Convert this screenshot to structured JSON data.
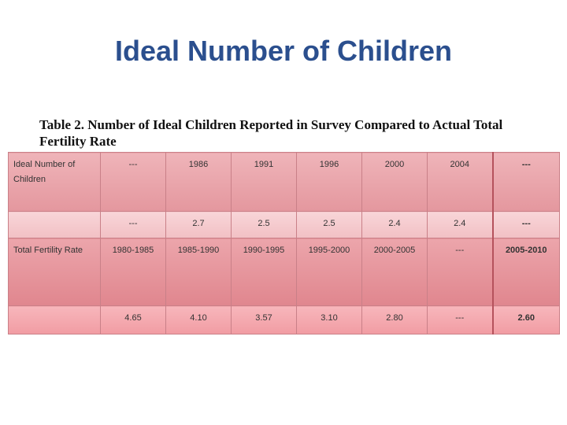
{
  "title": "Ideal Number of Children",
  "caption": "Table 2. Number of Ideal Children Reported in Survey Compared to Actual Total Fertility Rate",
  "table": {
    "rows": [
      [
        "Ideal Number of Children",
        "---",
        "1986",
        "1991",
        "1996",
        "2000",
        "2004",
        "---"
      ],
      [
        null,
        "---",
        "2.7",
        "2.5",
        "2.5",
        "2.4",
        "2.4",
        "---"
      ],
      [
        "Total Fertility Rate",
        "1980-1985",
        "1985-1990",
        "1990-1995",
        "1995-2000",
        "2000-2005",
        "---",
        "2005-2010"
      ],
      [
        null,
        "4.65",
        "4.10",
        "3.57",
        "3.10",
        "2.80",
        "---",
        "2.60"
      ]
    ]
  }
}
